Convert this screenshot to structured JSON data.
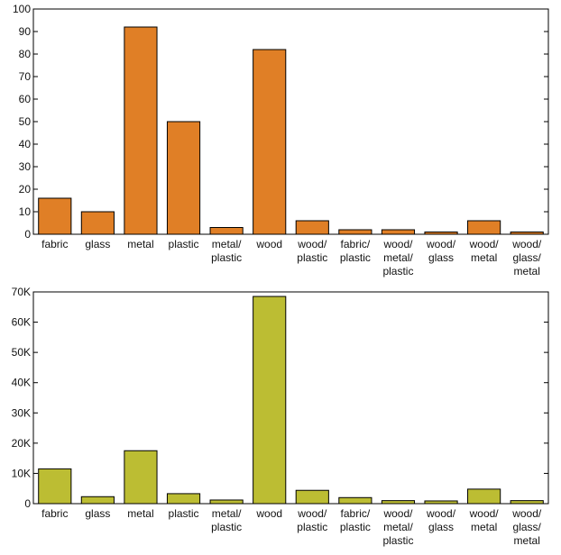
{
  "chart_data": [
    {
      "type": "bar",
      "categories": [
        [
          "fabric"
        ],
        [
          "glass"
        ],
        [
          "metal"
        ],
        [
          "plastic"
        ],
        [
          "metal/",
          "plastic"
        ],
        [
          "wood"
        ],
        [
          "wood/",
          "plastic"
        ],
        [
          "fabric/",
          "plastic"
        ],
        [
          "wood/",
          "metal/",
          "plastic"
        ],
        [
          "wood/",
          "glass"
        ],
        [
          "wood/",
          "metal"
        ],
        [
          "wood/",
          "glass/",
          "metal"
        ]
      ],
      "values": [
        16,
        10,
        92,
        50,
        3,
        82,
        6,
        2,
        2,
        1,
        6,
        1
      ],
      "ylim": [
        0,
        100
      ],
      "yticks": [
        0,
        10,
        20,
        30,
        40,
        50,
        60,
        70,
        80,
        90,
        100
      ],
      "ytick_labels": [
        "0",
        "10",
        "20",
        "30",
        "40",
        "50",
        "60",
        "70",
        "80",
        "90",
        "100"
      ],
      "bar_color": "#e07f26",
      "title": "",
      "xlabel": "",
      "ylabel": ""
    },
    {
      "type": "bar",
      "categories": [
        [
          "fabric"
        ],
        [
          "glass"
        ],
        [
          "metal"
        ],
        [
          "plastic"
        ],
        [
          "metal/",
          "plastic"
        ],
        [
          "wood"
        ],
        [
          "wood/",
          "plastic"
        ],
        [
          "fabric/",
          "plastic"
        ],
        [
          "wood/",
          "metal/",
          "plastic"
        ],
        [
          "wood/",
          "glass"
        ],
        [
          "wood/",
          "metal"
        ],
        [
          "wood/",
          "glass/",
          "metal"
        ]
      ],
      "values": [
        11500,
        2300,
        17500,
        3300,
        1200,
        68500,
        4400,
        2000,
        1000,
        900,
        4800,
        1000
      ],
      "ylim": [
        0,
        70000
      ],
      "yticks": [
        0,
        10000,
        20000,
        30000,
        40000,
        50000,
        60000,
        70000
      ],
      "ytick_labels": [
        "0",
        "10K",
        "20K",
        "30K",
        "40K",
        "50K",
        "60K",
        "70K"
      ],
      "bar_color": "#bcbd33",
      "title": "",
      "xlabel": "",
      "ylabel": ""
    }
  ]
}
